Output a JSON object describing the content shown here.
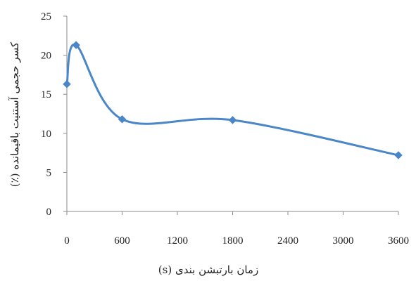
{
  "chart_data": {
    "type": "line",
    "title": "",
    "xlabel": "زمان بارتبشن بندی (s)",
    "ylabel": "کسر حجمی آستنیت باقیمانده (٪)",
    "xlim": [
      0,
      3600
    ],
    "ylim": [
      0,
      25
    ],
    "x_ticks": [
      "0",
      "600",
      "1200",
      "1800",
      "2400",
      "3000",
      "3600"
    ],
    "y_ticks": [
      "0",
      "5",
      "10",
      "15",
      "20",
      "25"
    ],
    "grid": false,
    "smooth": true,
    "series": [
      {
        "color": "#4a86c8",
        "marker": "diamond",
        "points": [
          {
            "x": 0,
            "y": 16.3
          },
          {
            "x": 100,
            "y": 21.3
          },
          {
            "x": 600,
            "y": 11.8
          },
          {
            "x": 1800,
            "y": 11.7
          },
          {
            "x": 3600,
            "y": 7.2
          }
        ]
      }
    ]
  }
}
